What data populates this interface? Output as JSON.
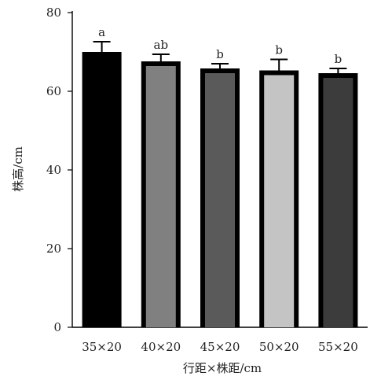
{
  "chart_data": {
    "type": "bar",
    "title": "",
    "xlabel": "行距×株距/cm",
    "ylabel": "株高/cm",
    "categories": [
      "35×20",
      "40×20",
      "45×20",
      "50×20",
      "55×20"
    ],
    "values": [
      70.0,
      67.6,
      65.8,
      65.3,
      64.6
    ],
    "errors": [
      2.6,
      1.8,
      1.2,
      2.8,
      1.2
    ],
    "significance": [
      "a",
      "ab",
      "b",
      "b",
      "b"
    ],
    "bar_colors": [
      "#000000",
      "#808080",
      "#5a5a5a",
      "#c4c4c4",
      "#3c3c3c"
    ],
    "bar_border_color": "#000000",
    "ylim": [
      0,
      80
    ],
    "yticks": [
      0,
      20,
      40,
      60,
      80
    ],
    "grid": false,
    "legend": "none"
  }
}
